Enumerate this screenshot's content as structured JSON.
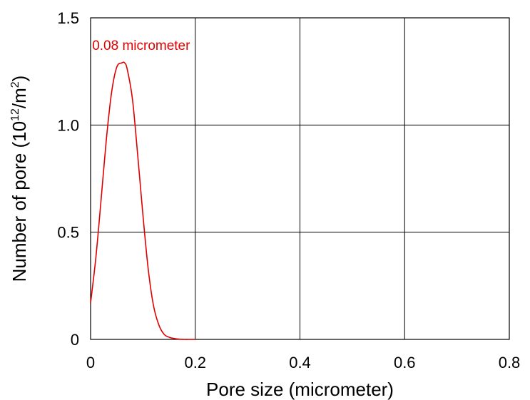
{
  "chart_data": {
    "type": "line",
    "title": "",
    "xlabel": "Pore size (micrometer)",
    "ylabel": {
      "prefix": "Number of pore (10",
      "sup1": "12",
      "mid": "/m",
      "sup2": "2",
      "suffix": ")"
    },
    "xlim": [
      0,
      0.8
    ],
    "ylim": [
      0,
      1.5
    ],
    "xticks": [
      "0",
      "0.2",
      "0.4",
      "0.6",
      "0.8"
    ],
    "xtick_values": [
      0,
      0.2,
      0.4,
      0.6,
      0.8
    ],
    "yticks": [
      "0",
      "0.5",
      "1.0",
      "1.5"
    ],
    "ytick_values": [
      0,
      0.5,
      1.0,
      1.5
    ],
    "grid": true,
    "series": [
      {
        "color": "#e00000",
        "x": [
          0,
          0.01,
          0.02,
          0.03,
          0.04,
          0.05,
          0.06,
          0.065,
          0.07,
          0.08,
          0.09,
          0.1,
          0.11,
          0.12,
          0.13,
          0.14,
          0.15,
          0.16,
          0.17,
          0.18,
          0.19,
          0.2
        ],
        "y": [
          0.17,
          0.38,
          0.65,
          0.93,
          1.15,
          1.27,
          1.29,
          1.29,
          1.26,
          1.12,
          0.86,
          0.58,
          0.33,
          0.16,
          0.07,
          0.025,
          0.01,
          0.004,
          0.001,
          0.0,
          0.0,
          0.0
        ]
      }
    ],
    "annotations": [
      {
        "text": "0.08 micrometer",
        "x": 0.003,
        "y": 1.35,
        "color": "#e00000"
      }
    ]
  }
}
